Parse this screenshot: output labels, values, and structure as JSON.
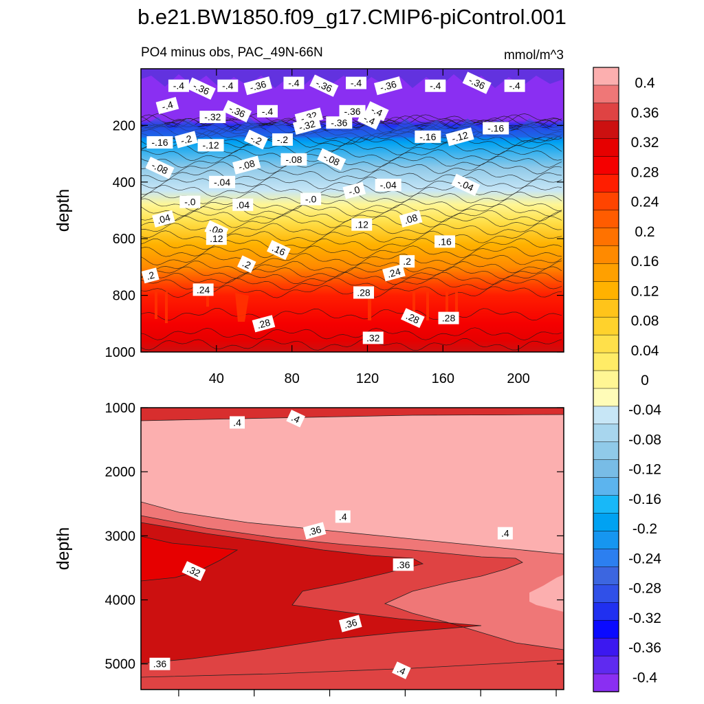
{
  "figure": {
    "title": "b.e21.BW1850.f09_g17.CMIP6-piControl.001",
    "left_subtitle": "PO4 minus obs, PAC_49N-66N",
    "right_subtitle": "mmol/m^3"
  },
  "chart_data": [
    {
      "type": "heatmap",
      "panel": "upper",
      "title": "PO4 minus obs, PAC_49N-66N",
      "units": "mmol/m^3",
      "xlabel": "",
      "ylabel": "depth",
      "xlim": [
        0,
        224
      ],
      "ylim": [
        1000,
        0
      ],
      "xticks": [
        40,
        80,
        120,
        160,
        200
      ],
      "yticks": [
        200,
        400,
        600,
        800,
        1000
      ],
      "field_profile": [
        {
          "depth": 0,
          "value": -0.42
        },
        {
          "depth": 180,
          "value": -0.4
        },
        {
          "depth": 200,
          "value": -0.3
        },
        {
          "depth": 260,
          "value": -0.18
        },
        {
          "depth": 350,
          "value": -0.1
        },
        {
          "depth": 430,
          "value": -0.04
        },
        {
          "depth": 480,
          "value": 0.0
        },
        {
          "depth": 540,
          "value": 0.06
        },
        {
          "depth": 620,
          "value": 0.12
        },
        {
          "depth": 700,
          "value": 0.18
        },
        {
          "depth": 760,
          "value": 0.24
        },
        {
          "depth": 800,
          "value": 0.27
        },
        {
          "depth": 900,
          "value": 0.285
        },
        {
          "depth": 960,
          "value": 0.31
        },
        {
          "depth": 1000,
          "value": 0.34
        }
      ],
      "contour_labels": [
        {
          "text": "-.4",
          "x": 20,
          "y": 60
        },
        {
          "text": "-.36",
          "x": 32,
          "y": 70
        },
        {
          "text": "-.4",
          "x": 46,
          "y": 60
        },
        {
          "text": "-.36",
          "x": 62,
          "y": 60
        },
        {
          "text": "-.4",
          "x": 81,
          "y": 50
        },
        {
          "text": "-.36",
          "x": 97,
          "y": 60
        },
        {
          "text": "-.4",
          "x": 114,
          "y": 50
        },
        {
          "text": "-.36",
          "x": 131,
          "y": 60
        },
        {
          "text": "-.4",
          "x": 156,
          "y": 60
        },
        {
          "text": "-.36",
          "x": 178,
          "y": 50
        },
        {
          "text": "-.4",
          "x": 198,
          "y": 60
        },
        {
          "text": "-.4",
          "x": 14,
          "y": 130
        },
        {
          "text": "-.32",
          "x": 38,
          "y": 170
        },
        {
          "text": "-.36",
          "x": 51,
          "y": 150
        },
        {
          "text": "-.4",
          "x": 67,
          "y": 150
        },
        {
          "text": "-.32",
          "x": 89,
          "y": 170
        },
        {
          "text": "-.36",
          "x": 112,
          "y": 150
        },
        {
          "text": "-.4",
          "x": 125,
          "y": 150
        },
        {
          "text": "-.16",
          "x": 10,
          "y": 260
        },
        {
          "text": "-.2",
          "x": 24,
          "y": 250
        },
        {
          "text": "-.12",
          "x": 37,
          "y": 270
        },
        {
          "text": "-.2",
          "x": 61,
          "y": 250
        },
        {
          "text": "-.2",
          "x": 75,
          "y": 250
        },
        {
          "text": "-.32",
          "x": 88,
          "y": 200
        },
        {
          "text": "-.36",
          "x": 105,
          "y": 190
        },
        {
          "text": "-.4",
          "x": 121,
          "y": 180
        },
        {
          "text": "-.16",
          "x": 152,
          "y": 240
        },
        {
          "text": "-.12",
          "x": 169,
          "y": 240
        },
        {
          "text": "-.16",
          "x": 188,
          "y": 210
        },
        {
          "text": "-.08",
          "x": 10,
          "y": 350
        },
        {
          "text": "-.04",
          "x": 43,
          "y": 400
        },
        {
          "text": "-.08",
          "x": 56,
          "y": 340
        },
        {
          "text": "-.08",
          "x": 81,
          "y": 320
        },
        {
          "text": "-.08",
          "x": 101,
          "y": 320
        },
        {
          "text": "-.0",
          "x": 90,
          "y": 460
        },
        {
          "text": "-.0",
          "x": 113,
          "y": 430
        },
        {
          "text": "-.04",
          "x": 131,
          "y": 410
        },
        {
          "text": "-.04",
          "x": 172,
          "y": 410
        },
        {
          "text": "-.0",
          "x": 26,
          "y": 470
        },
        {
          "text": ".04",
          "x": 12,
          "y": 530
        },
        {
          "text": ".04",
          "x": 54,
          "y": 480
        },
        {
          "text": ".08",
          "x": 40,
          "y": 570
        },
        {
          "text": ".12",
          "x": 117,
          "y": 550
        },
        {
          "text": ".08",
          "x": 143,
          "y": 530
        },
        {
          "text": ".12",
          "x": 40,
          "y": 600
        },
        {
          "text": ".16",
          "x": 73,
          "y": 640
        },
        {
          "text": ".16",
          "x": 161,
          "y": 610
        },
        {
          "text": ".2",
          "x": 5,
          "y": 730
        },
        {
          "text": ".24",
          "x": 33,
          "y": 780
        },
        {
          "text": ".2",
          "x": 56,
          "y": 690
        },
        {
          "text": ".2",
          "x": 141,
          "y": 680
        },
        {
          "text": ".24",
          "x": 134,
          "y": 720
        },
        {
          "text": ".28",
          "x": 118,
          "y": 790
        },
        {
          "text": ".28",
          "x": 144,
          "y": 880
        },
        {
          "text": ".28",
          "x": 163,
          "y": 880
        },
        {
          "text": ".28",
          "x": 65,
          "y": 900
        },
        {
          "text": ".32",
          "x": 123,
          "y": 950
        }
      ]
    },
    {
      "type": "heatmap",
      "panel": "lower",
      "title": "",
      "xlabel": "",
      "ylabel": "depth",
      "xlim": [
        0,
        224
      ],
      "ylim": [
        5400,
        1000
      ],
      "xticks": [],
      "yticks": [
        1000,
        2000,
        3000,
        4000,
        5000
      ],
      "contour_labels": [
        {
          "text": ".4",
          "x": 51,
          "y": 1230
        },
        {
          "text": ".4",
          "x": 82,
          "y": 1170
        },
        {
          "text": ".4",
          "x": 107,
          "y": 2700
        },
        {
          "text": ".36",
          "x": 92,
          "y": 2920
        },
        {
          "text": ".4",
          "x": 193,
          "y": 2960
        },
        {
          "text": ".32",
          "x": 28,
          "y": 3550
        },
        {
          "text": ".36",
          "x": 139,
          "y": 3450
        },
        {
          "text": ".36",
          "x": 111,
          "y": 4370
        },
        {
          "text": ".36",
          "x": 10,
          "y": 5000
        },
        {
          "text": ".4",
          "x": 138,
          "y": 5100
        }
      ]
    }
  ],
  "colorbar": {
    "tick_labels": [
      "0.4",
      "0.36",
      "0.32",
      "0.28",
      "0.24",
      "0.2",
      "0.16",
      "0.12",
      "0.08",
      "0.04",
      "0",
      "-0.04",
      "-0.08",
      "-0.12",
      "-0.16",
      "-0.2",
      "-0.24",
      "-0.28",
      "-0.32",
      "-0.36",
      "-0.4"
    ],
    "colors": [
      "#fcafaf",
      "#ef7777",
      "#df4343",
      "#cc1010",
      "#e60000",
      "#f50000",
      "#ff1e00",
      "#ff4400",
      "#ff5c00",
      "#ff7200",
      "#ff8a00",
      "#ffa000",
      "#ffb200",
      "#ffc41a",
      "#ffd22c",
      "#ffe04a",
      "#ffec66",
      "#fff694",
      "#fffcb8",
      "#c7e6f6",
      "#a8d6ee",
      "#90cae9",
      "#78bce6",
      "#5cb4ee",
      "#18b8f8",
      "#00a2f2",
      "#1696f0",
      "#2c7ff0",
      "#3c66e0",
      "#3050e8",
      "#2030f0",
      "#0a0aff",
      "#3c18f0",
      "#5f2af0",
      "#8a2ff2"
    ]
  }
}
